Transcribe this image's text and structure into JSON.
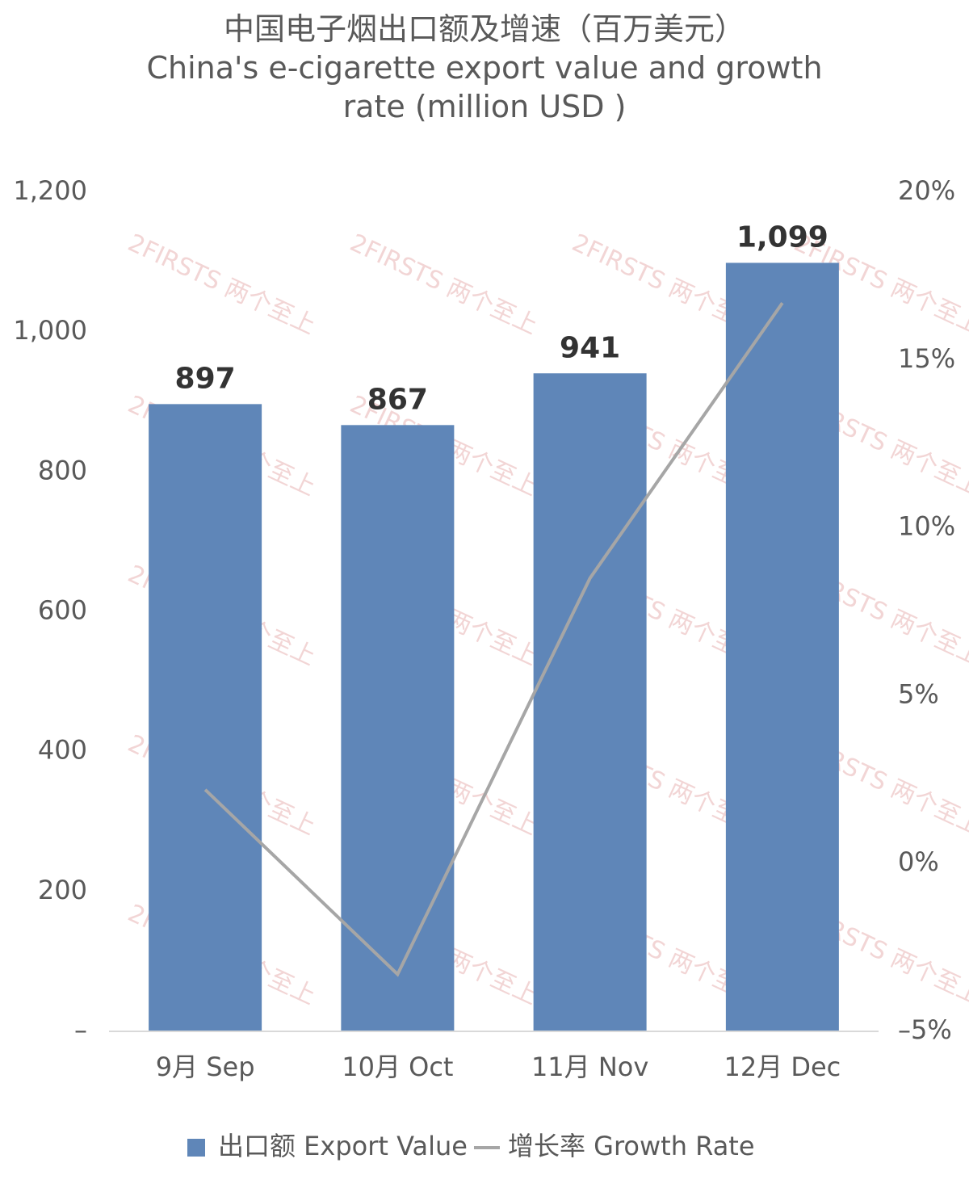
{
  "chart_data": {
    "type": "bar",
    "title": "中国电子烟出口额及增速（百万美元）",
    "subtitle": "China's e-cigarette export value and growth rate (million USD )",
    "watermark": "2FIRSTS 两个至上",
    "categories": [
      "9月 Sep",
      "10月 Oct",
      "11月 Nov",
      "12月 Dec"
    ],
    "series": [
      {
        "name": "出口额 Export Value",
        "type": "bar",
        "color": "#5f86b8",
        "values": [
          897,
          867,
          941,
          1099
        ],
        "value_labels": [
          "897",
          "867",
          "941",
          "1,099"
        ]
      },
      {
        "name": "增长率 Growth Rate",
        "type": "line",
        "axis": "y2",
        "color": "#a6a6a6",
        "values": [
          2.2,
          -3.3,
          8.5,
          16.7
        ]
      }
    ],
    "ylim": [
      0,
      1200
    ],
    "yticks": [
      {
        "value": 0,
        "label": "–"
      },
      200,
      400,
      600,
      800,
      {
        "value": 1000,
        "label": "1,000"
      },
      {
        "value": 1200,
        "label": "1,200"
      }
    ],
    "y2lim": [
      -5,
      20
    ],
    "y2ticks": [
      {
        "value": -5,
        "label": "–5%"
      },
      {
        "value": 0,
        "label": "0%"
      },
      {
        "value": 5,
        "label": "5%"
      },
      {
        "value": 10,
        "label": "10%"
      },
      {
        "value": 15,
        "label": "15%"
      },
      {
        "value": 20,
        "label": "20%"
      }
    ],
    "grid": false,
    "legend": "bottom"
  }
}
